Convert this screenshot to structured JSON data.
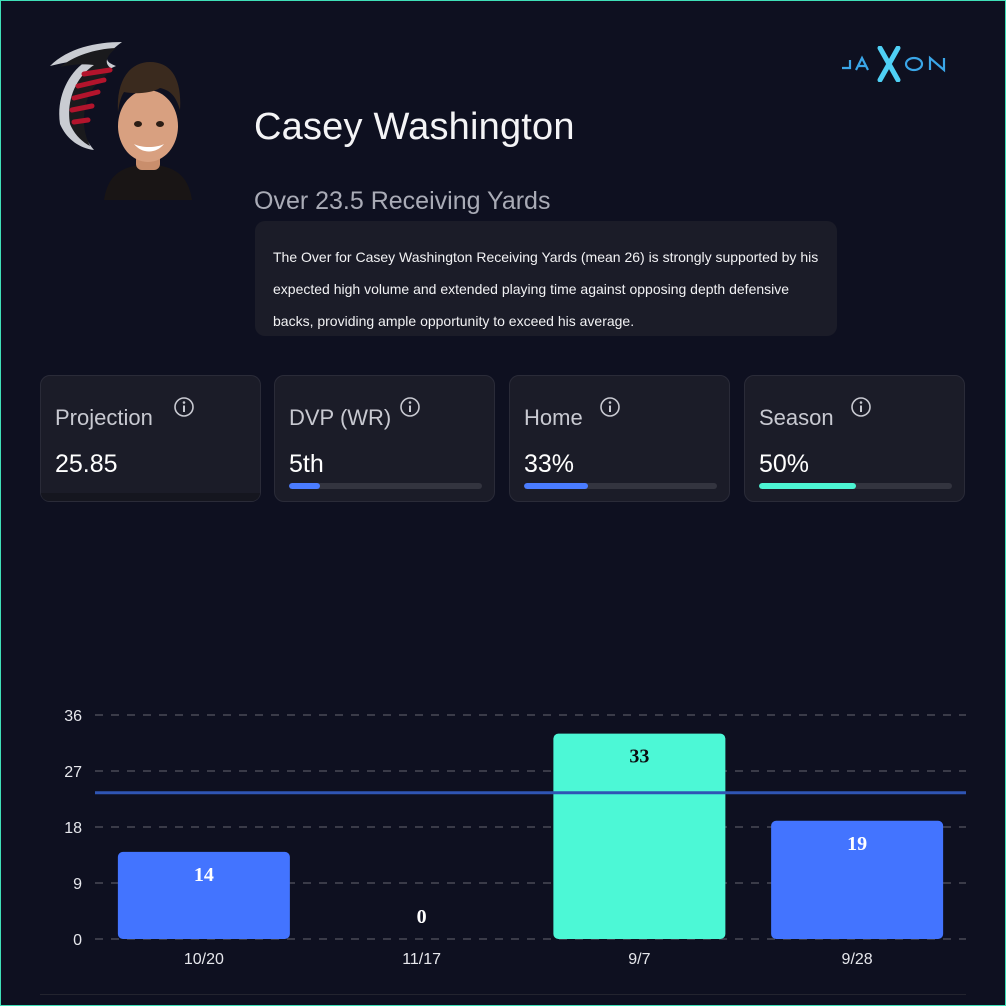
{
  "player": {
    "name": "Casey Washington",
    "prop": "Over 23.5 Receiving Yards",
    "analysis": "The Over for Casey Washington Receiving Yards (mean 26) is strongly supported by his expected high volume and extended playing time against opposing depth defensive backs, providing ample opportunity to exceed his average."
  },
  "brand": {
    "name": "JAXON",
    "icon": "jaxon-logo"
  },
  "team": {
    "icon": "falcons-logo"
  },
  "stats": [
    {
      "label": "Projection",
      "value": "25.85",
      "icon": "info-icon"
    },
    {
      "label": "DVP (WR)",
      "value": "5th",
      "progress": 0.16,
      "color": "#4a7cff",
      "icon": "info-icon"
    },
    {
      "label": "Home",
      "value": "33%",
      "progress": 0.33,
      "color": "#4a7cff",
      "icon": "info-icon"
    },
    {
      "label": "Season",
      "value": "50%",
      "progress": 0.5,
      "color": "#4cf5d3",
      "icon": "info-icon"
    }
  ],
  "chart_data": {
    "type": "bar",
    "categories": [
      "10/20",
      "11/17",
      "9/7",
      "9/28"
    ],
    "values": [
      14,
      0,
      33,
      19
    ],
    "yticks": [
      0,
      9,
      18,
      27,
      36
    ],
    "ylim": [
      0,
      36
    ],
    "reference_line": 23.5,
    "grid": true,
    "colors": {
      "under": "#4374ff",
      "over": "#4cf8d6",
      "line": "#2f55b4"
    }
  }
}
